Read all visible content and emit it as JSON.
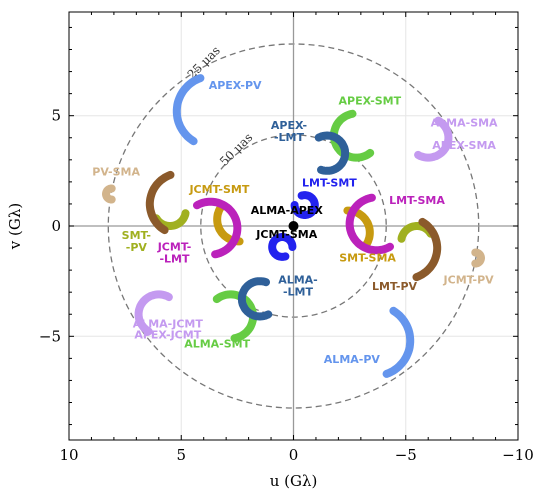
{
  "chart_data": {
    "type": "scatter",
    "title": "",
    "xlabel": "u (Gλ)",
    "ylabel": "v (Gλ)",
    "xlim": [
      10,
      -10
    ],
    "ylim": [
      -9.7,
      9.7
    ],
    "xticks": [
      10,
      5,
      0,
      -5,
      -10
    ],
    "xtick_labels": [
      "10",
      "5",
      "0",
      "−5",
      "−10"
    ],
    "yticks": [
      5,
      0,
      -5
    ],
    "ytick_labels": [
      "5",
      "0",
      "−5"
    ],
    "grid": true,
    "rings": [
      {
        "label": "25 μas",
        "radius": 8.25,
        "label_angle_deg": 118
      },
      {
        "label": "50 μas",
        "radius": 4.13,
        "label_angle_deg": 126
      }
    ],
    "series": [
      {
        "name": "ALMA-APEX",
        "color": "#000000",
        "center": [
          0.0,
          0.0
        ],
        "radius": 0.0,
        "arc_deg": [
          0,
          360
        ],
        "label_pos": [
          0.3,
          0.55
        ]
      },
      {
        "name": "JCMT-SMA",
        "color": "#000000",
        "center": [
          0.0,
          0.0
        ],
        "radius": 0.0,
        "arc_deg": [
          0,
          0
        ],
        "label_pos": [
          0.3,
          -0.55
        ],
        "hidden_marker": true
      },
      {
        "name": "APEX-PV",
        "color": "#6495ed",
        "center": [
          3.6,
          5.2
        ],
        "radius": 1.6,
        "arc_deg": [
          110,
          240
        ],
        "label_pos": [
          2.6,
          6.2
        ]
      },
      {
        "name": "ALMA-PV",
        "color": "#6495ed",
        "center": [
          -3.6,
          -5.2
        ],
        "radius": 1.6,
        "arc_deg": [
          290,
          60
        ],
        "label_pos": [
          -2.6,
          -6.2
        ]
      },
      {
        "name": "APEX-SMT",
        "color": "#66cc44",
        "center": [
          -2.8,
          4.1
        ],
        "radius": 1.0,
        "arc_deg": [
          100,
          310
        ],
        "label_pos": [
          -3.4,
          5.5
        ]
      },
      {
        "name": "ALMA-SMT",
        "color": "#66cc44",
        "center": [
          2.8,
          -4.1
        ],
        "radius": 1.0,
        "arc_deg": [
          280,
          130
        ],
        "label_pos": [
          3.4,
          -5.5
        ]
      },
      {
        "name": "ALMA-SMA",
        "color": "#c49af0",
        "center": [
          -6.0,
          4.0
        ],
        "radius": 0.9,
        "arc_deg": [
          240,
          60
        ],
        "label_pos": [
          -7.6,
          4.5
        ]
      },
      {
        "name": "APEX-SMA",
        "color": "#c49af0",
        "center": [
          -6.0,
          4.0
        ],
        "radius": 0.0,
        "arc_deg": [
          0,
          0
        ],
        "label_pos": [
          -7.6,
          3.5
        ],
        "hidden_marker": true
      },
      {
        "name": "ALMA-JCMT",
        "color": "#c49af0",
        "center": [
          6.0,
          -4.0
        ],
        "radius": 0.9,
        "arc_deg": [
          60,
          240
        ],
        "label_pos": [
          5.6,
          -4.6
        ]
      },
      {
        "name": "APEX-JCMT",
        "color": "#c49af0",
        "center": [
          6.0,
          -4.0
        ],
        "radius": 0.0,
        "arc_deg": [
          0,
          0
        ],
        "label_pos": [
          5.6,
          -5.1
        ],
        "hidden_marker": true
      },
      {
        "name": "APEX-\n-LMT",
        "color": "#2f6099",
        "center": [
          -1.5,
          3.3
        ],
        "radius": 0.8,
        "arc_deg": [
          250,
          120
        ],
        "label_pos": [
          0.2,
          4.4
        ]
      },
      {
        "name": "ALMA-\n-LMT",
        "color": "#2f6099",
        "center": [
          1.5,
          -3.3
        ],
        "radius": 0.8,
        "arc_deg": [
          70,
          300
        ],
        "label_pos": [
          -0.2,
          -2.6
        ]
      },
      {
        "name": "LMT-SMT",
        "color": "#2222ee",
        "center": [
          -0.5,
          0.95
        ],
        "radius": 0.45,
        "arc_deg": [
          180,
          110
        ],
        "label_pos": [
          -1.6,
          1.8
        ]
      },
      {
        "name": "LMT-SMT-low",
        "color": "#2222ee",
        "center": [
          0.5,
          -0.95
        ],
        "radius": 0.45,
        "arc_deg": [
          0,
          -70
        ],
        "label_pos": [
          0,
          0
        ],
        "hidden_label": true
      },
      {
        "name": "JCMT-SMT",
        "color": "#c79a10",
        "center": [
          2.4,
          0.3
        ],
        "radius": 1.0,
        "arc_deg": [
          150,
          270
        ],
        "label_pos": [
          3.3,
          1.5
        ]
      },
      {
        "name": "SMT-SMA",
        "color": "#c79a10",
        "center": [
          -2.4,
          -0.3
        ],
        "radius": 1.0,
        "arc_deg": [
          330,
          90
        ],
        "label_pos": [
          -3.3,
          -1.6
        ]
      },
      {
        "name": "LMT-SMA",
        "color": "#bb22bb",
        "center": [
          -3.7,
          0.1
        ],
        "radius": 1.2,
        "arc_deg": [
          100,
          300
        ],
        "label_pos": [
          -5.5,
          1.0
        ]
      },
      {
        "name": "JCMT-\n-LMT",
        "color": "#bb22bb",
        "center": [
          3.7,
          -0.1
        ],
        "radius": 1.2,
        "arc_deg": [
          280,
          120
        ],
        "label_pos": [
          5.3,
          -1.1
        ]
      },
      {
        "name": "SMT-\n-PV",
        "color": "#a0b020",
        "center": [
          5.5,
          0.7
        ],
        "radius": 0.7,
        "arc_deg": [
          210,
          350
        ],
        "label_pos": [
          7.0,
          -0.6
        ]
      },
      {
        "name": "SMT-PV-right",
        "color": "#a0b020",
        "center": [
          -5.5,
          -0.7
        ],
        "radius": 0.7,
        "arc_deg": [
          30,
          170
        ],
        "label_pos": [
          0,
          0
        ],
        "hidden_label": true
      },
      {
        "name": "LMT-PV",
        "color": "#8b5a2b",
        "center": [
          -5.0,
          -1.0
        ],
        "radius": 1.4,
        "arc_deg": [
          290,
          60
        ],
        "label_pos": [
          -4.5,
          -2.9
        ]
      },
      {
        "name": "LMT-PV-left",
        "color": "#8b5a2b",
        "center": [
          5.0,
          1.0
        ],
        "radius": 1.4,
        "arc_deg": [
          110,
          240
        ],
        "label_pos": [
          0,
          0
        ],
        "hidden_label": true
      },
      {
        "name": "PV-SMA",
        "color": "#d2b48c",
        "center": [
          8.1,
          1.45
        ],
        "radius": 0.25,
        "arc_deg": [
          90,
          270
        ],
        "label_pos": [
          7.9,
          2.3
        ]
      },
      {
        "name": "JCMT-PV",
        "color": "#d2b48c",
        "center": [
          -8.1,
          -1.45
        ],
        "radius": 0.25,
        "arc_deg": [
          270,
          90
        ],
        "label_pos": [
          -7.8,
          -2.6
        ]
      }
    ]
  }
}
